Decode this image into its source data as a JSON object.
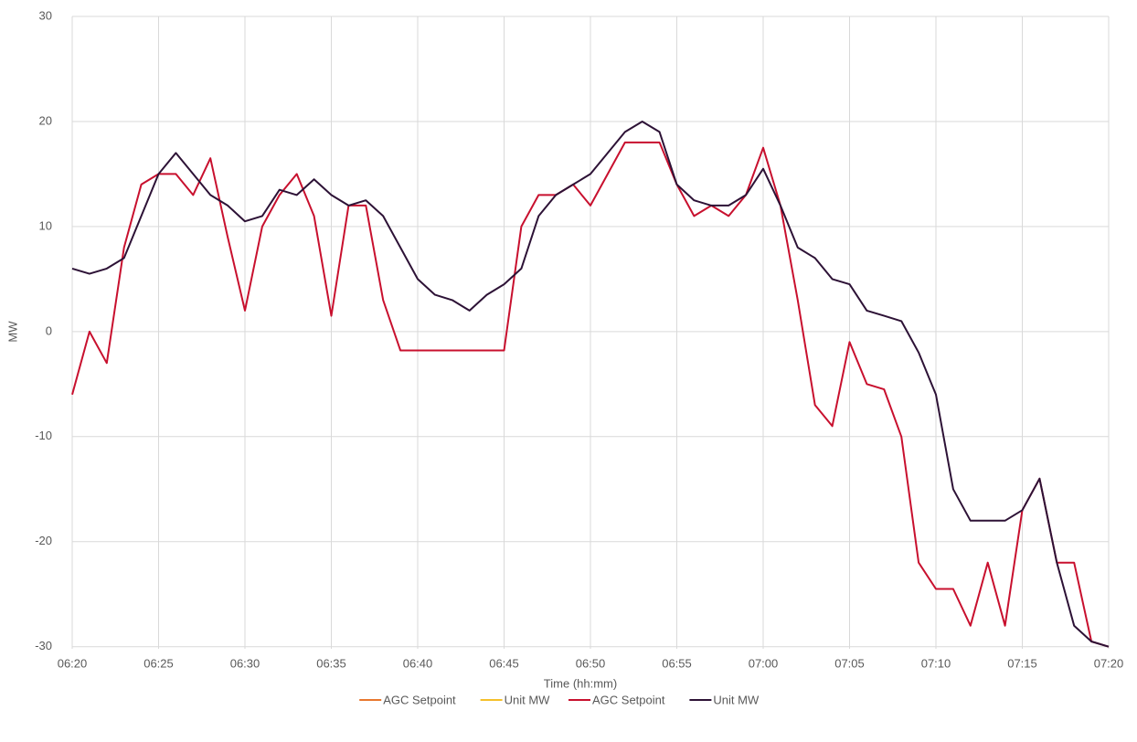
{
  "chart_data": {
    "type": "line",
    "x_label": "Time (hh:mm)",
    "y_label": "MW",
    "categories": [
      "06:20",
      null,
      null,
      null,
      null,
      "06:25",
      null,
      null,
      null,
      null,
      "06:30",
      null,
      null,
      null,
      null,
      "06:35",
      null,
      null,
      null,
      null,
      "06:40",
      null,
      null,
      null,
      null,
      "06:45",
      null,
      null,
      null,
      null,
      "06:50",
      null,
      null,
      null,
      null,
      "06:55",
      null,
      null,
      null,
      null,
      "07:00",
      null,
      null,
      null,
      null,
      "07:05",
      null,
      null,
      null,
      null,
      "07:10",
      null,
      null,
      null,
      null,
      "07:15",
      null,
      null,
      null,
      null,
      "07:20"
    ],
    "series": [
      {
        "name": "AGC Setpoint",
        "color": "#e8772e",
        "values": [
          null,
          null,
          null,
          null,
          null,
          null,
          null,
          null,
          null,
          null,
          null,
          null,
          null,
          null,
          null,
          null,
          null,
          null,
          null,
          null,
          null,
          null,
          null,
          null,
          null,
          null,
          null,
          null,
          null,
          null,
          null,
          null,
          null,
          null,
          null,
          null,
          null,
          null,
          null,
          null,
          null,
          null,
          null,
          null,
          null,
          null,
          null,
          null,
          null,
          null,
          null,
          null,
          null,
          null,
          null,
          null,
          null,
          null,
          null,
          null,
          null
        ]
      },
      {
        "name": "Unit MW",
        "color": "#f5c02a",
        "values": [
          null,
          null,
          null,
          null,
          null,
          null,
          null,
          null,
          null,
          null,
          null,
          null,
          null,
          null,
          null,
          null,
          null,
          null,
          null,
          null,
          null,
          null,
          null,
          null,
          null,
          null,
          null,
          null,
          null,
          null,
          null,
          null,
          null,
          null,
          null,
          null,
          null,
          null,
          null,
          null,
          null,
          null,
          null,
          null,
          null,
          null,
          null,
          null,
          null,
          null,
          null,
          null,
          null,
          null,
          null,
          null,
          null,
          null,
          null,
          null,
          null
        ]
      },
      {
        "name": "AGC Setpoint",
        "color": "#c8102e",
        "values": [
          -6,
          0,
          -3,
          8,
          14,
          15,
          15,
          13,
          16.5,
          9,
          2,
          10,
          13,
          15,
          11,
          1.5,
          12,
          12,
          3,
          -1.8,
          -1.8,
          -1.8,
          -1.8,
          -1.8,
          -1.8,
          -1.8,
          10,
          13,
          13,
          14,
          12,
          15,
          18,
          18,
          18,
          14,
          11,
          12,
          11,
          13,
          17.5,
          12,
          3,
          -7,
          -9,
          -1,
          -5,
          -5.5,
          -10,
          -22,
          -24.5,
          -24.5,
          -28,
          -22,
          -28,
          -17,
          -14,
          -22,
          -22,
          -29.5,
          -30
        ]
      },
      {
        "name": "Unit MW",
        "color": "#2d1236",
        "values": [
          6,
          5.5,
          6,
          7,
          11,
          15,
          17,
          15,
          13,
          12,
          10.5,
          11,
          13.5,
          13,
          14.5,
          13,
          12,
          12.5,
          11,
          8,
          5,
          3.5,
          3,
          2,
          3.5,
          4.5,
          6,
          11,
          13,
          14,
          15,
          17,
          19,
          20,
          19,
          14,
          12.5,
          12,
          12,
          13,
          15.5,
          12,
          8,
          7,
          5,
          4.5,
          2,
          1.5,
          1,
          -2,
          -6,
          -15,
          -18,
          -18,
          -18,
          -17,
          -14,
          -22,
          -28,
          -29.5,
          -30
        ]
      }
    ],
    "ylim": [
      -30.2,
      30
    ],
    "yticks": [
      -30,
      -20,
      -10,
      0,
      10,
      20,
      30
    ],
    "grid": true
  }
}
